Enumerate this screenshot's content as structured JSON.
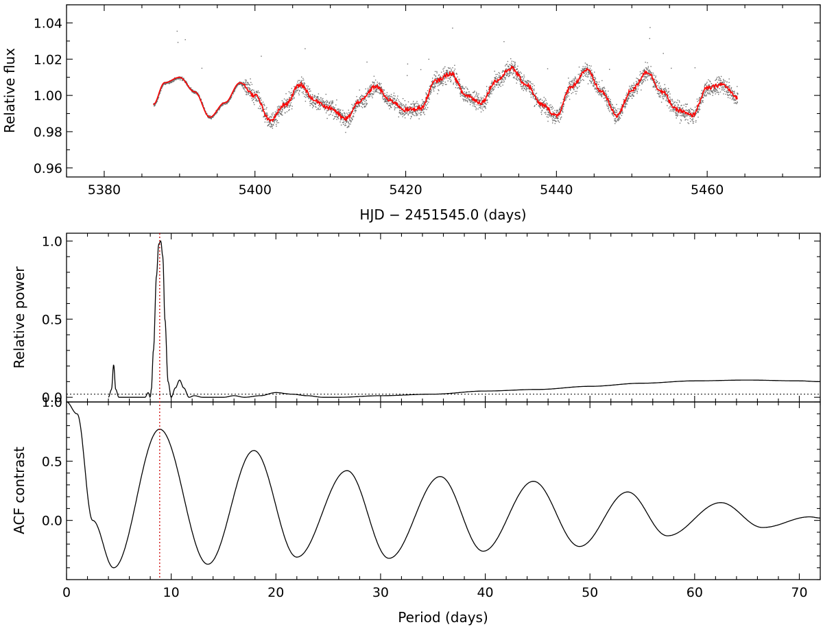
{
  "chart_data": [
    {
      "id": "lightcurve",
      "type": "scatter",
      "xlabel": "HJD − 2451545.0 (days)",
      "ylabel": "Relative flux",
      "xlim": [
        5375,
        5475
      ],
      "ylim": [
        0.955,
        1.05
      ],
      "x_ticks": [
        5380,
        5400,
        5420,
        5440,
        5460
      ],
      "x_tick_labels": [
        "5380",
        "5400",
        "5420",
        "5440",
        "5460"
      ],
      "y_ticks": [
        0.96,
        0.98,
        1.0,
        1.02,
        1.04
      ],
      "y_tick_labels": [
        "0.96",
        "0.98",
        "1.00",
        "1.02",
        "1.04"
      ],
      "colors": {
        "raw": "#6e6e6e",
        "smoothed": "#ff0000"
      },
      "series": [
        {
          "role": "raw",
          "x": [
            5386.5,
            5388,
            5390,
            5392,
            5394,
            5396,
            5398,
            5399,
            5400,
            5402,
            5404,
            5406,
            5408,
            5410,
            5412,
            5414,
            5416,
            5418,
            5420,
            5422,
            5424,
            5426,
            5428,
            5430,
            5432,
            5434,
            5436,
            5438,
            5440,
            5442,
            5444,
            5446,
            5448,
            5450,
            5452,
            5454,
            5456,
            5458,
            5460,
            5462,
            5464
          ],
          "y": [
            0.995,
            1.007,
            1.01,
            1.002,
            0.988,
            0.996,
            1.007,
            1.004,
            1.0,
            0.986,
            0.995,
            1.006,
            0.997,
            0.993,
            0.987,
            0.997,
            1.005,
            0.997,
            0.992,
            0.993,
            1.008,
            1.012,
            1.0,
            0.996,
            1.008,
            1.015,
            1.006,
            0.995,
            0.989,
            1.005,
            1.014,
            1.002,
            0.989,
            1.003,
            1.013,
            1.002,
            0.992,
            0.989,
            1.004,
            1.006,
            0.999
          ],
          "scatter_sd": [
            0.0008,
            0.0008,
            0.0008,
            0.0008,
            0.0008,
            0.0008,
            0.0008,
            0.0045,
            0.0045,
            0.0045,
            0.0045,
            0.0045,
            0.0045,
            0.0045,
            0.0045,
            0.0045,
            0.0045,
            0.0045,
            0.0045,
            0.0045,
            0.0045,
            0.0045,
            0.0045,
            0.0045,
            0.0045,
            0.0045,
            0.0045,
            0.0045,
            0.0045,
            0.0045,
            0.0045,
            0.0045,
            0.0045,
            0.0045,
            0.0045,
            0.0045,
            0.0045,
            0.0045,
            0.0045,
            0.0045,
            0.0045
          ]
        },
        {
          "role": "smoothed",
          "x": [
            5386.5,
            5388,
            5390,
            5392,
            5394,
            5396,
            5398,
            5400,
            5402,
            5404,
            5406,
            5408,
            5410,
            5412,
            5414,
            5416,
            5418,
            5420,
            5422,
            5424,
            5426,
            5428,
            5430,
            5432,
            5434,
            5436,
            5438,
            5440,
            5442,
            5444,
            5446,
            5448,
            5450,
            5452,
            5454,
            5456,
            5458,
            5460,
            5462,
            5464
          ],
          "y": [
            0.995,
            1.007,
            1.01,
            1.002,
            0.988,
            0.996,
            1.007,
            1.0,
            0.986,
            0.995,
            1.006,
            0.997,
            0.993,
            0.987,
            0.997,
            1.005,
            0.997,
            0.992,
            0.993,
            1.008,
            1.012,
            1.0,
            0.996,
            1.008,
            1.015,
            1.006,
            0.995,
            0.989,
            1.005,
            1.014,
            1.002,
            0.989,
            1.003,
            1.013,
            1.002,
            0.992,
            0.989,
            1.004,
            1.006,
            0.999
          ]
        }
      ]
    },
    {
      "id": "periodogram",
      "type": "line",
      "ylabel": "Relative power",
      "xlim": [
        0,
        72
      ],
      "ylim": [
        -0.03,
        1.05
      ],
      "y_ticks": [
        0.0,
        0.5,
        1.0
      ],
      "y_tick_labels": [
        "0.0",
        "0.5",
        "1.0"
      ],
      "significance_level": 0.02,
      "series": [
        {
          "x": [
            4.0,
            4.3,
            4.5,
            4.7,
            5.0,
            7.5,
            7.8,
            8.0,
            8.1,
            8.3,
            8.6,
            8.8,
            9.0,
            9.2,
            9.4,
            9.7,
            10.0,
            10.4,
            10.8,
            11.2,
            11.7,
            12.2,
            13.0,
            14.0,
            15.0,
            16.0,
            17.0,
            18.5,
            20.0,
            21.5,
            23.0,
            24.5,
            26.0,
            30.0,
            35.0,
            40.0,
            45.0,
            50.0,
            55.0,
            60.0,
            65.0,
            70.0,
            72.0
          ],
          "y": [
            0.0,
            0.05,
            0.21,
            0.05,
            0.0,
            0.0,
            0.03,
            0.0,
            0.05,
            0.3,
            0.78,
            0.98,
            1.0,
            0.9,
            0.5,
            0.1,
            0.0,
            0.06,
            0.11,
            0.06,
            0.0,
            0.01,
            0.0,
            0.0,
            0.0,
            0.01,
            0.0,
            0.01,
            0.03,
            0.02,
            0.01,
            0.0,
            0.0,
            0.01,
            0.02,
            0.04,
            0.05,
            0.07,
            0.09,
            0.105,
            0.11,
            0.105,
            0.1
          ]
        }
      ]
    },
    {
      "id": "acf",
      "type": "line",
      "xlabel": "Period (days)",
      "ylabel": "ACF contrast",
      "xlim": [
        0,
        72
      ],
      "ylim": [
        -0.5,
        1.0
      ],
      "x_ticks": [
        0,
        10,
        20,
        30,
        40,
        50,
        60,
        70
      ],
      "x_tick_labels": [
        "0",
        "10",
        "20",
        "30",
        "40",
        "50",
        "60",
        "70"
      ],
      "y_ticks": [
        0.0,
        0.5,
        1.0
      ],
      "y_tick_labels": [
        "0.0",
        "0.5",
        "1.0"
      ],
      "series": [
        {
          "x": [
            0,
            1,
            2.5,
            4.5,
            8.9,
            13.5,
            17.9,
            22.0,
            26.8,
            30.8,
            35.7,
            39.8,
            44.6,
            49.0,
            53.6,
            57.4,
            62.5,
            66.5,
            71.0,
            72.0
          ],
          "y": [
            1.0,
            0.9,
            0.0,
            -0.4,
            0.77,
            -0.37,
            0.59,
            -0.31,
            0.42,
            -0.32,
            0.37,
            -0.26,
            0.33,
            -0.22,
            0.24,
            -0.13,
            0.15,
            -0.06,
            0.03,
            0.02
          ]
        }
      ]
    }
  ],
  "marker": {
    "period_days": 8.9,
    "color": "#cc0000"
  }
}
